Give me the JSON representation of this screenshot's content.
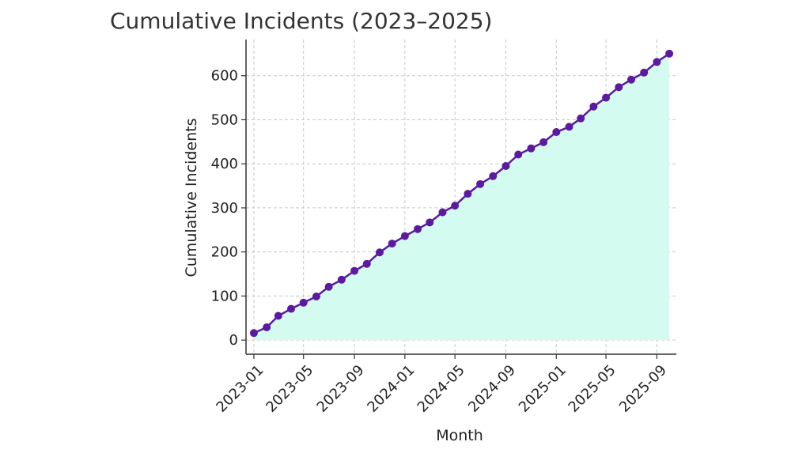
{
  "chart_data": {
    "type": "area",
    "title": "Cumulative Incidents (2023–2025)",
    "xlabel": "Month",
    "ylabel": "Cumulative Incidents",
    "x": [
      "2023-01",
      "2023-02",
      "2023-03",
      "2023-04",
      "2023-05",
      "2023-06",
      "2023-07",
      "2023-08",
      "2023-09",
      "2023-10",
      "2023-11",
      "2023-12",
      "2024-01",
      "2024-02",
      "2024-03",
      "2024-04",
      "2024-05",
      "2024-06",
      "2024-07",
      "2024-08",
      "2024-09",
      "2024-10",
      "2024-11",
      "2024-12",
      "2025-01",
      "2025-02",
      "2025-03",
      "2025-04",
      "2025-05",
      "2025-06",
      "2025-07",
      "2025-08",
      "2025-09",
      "2025-10"
    ],
    "series": [
      {
        "values": [
          16,
          29,
          55,
          71,
          85,
          99,
          121,
          137,
          157,
          173,
          199,
          219,
          236,
          252,
          267,
          290,
          305,
          332,
          354,
          372,
          395,
          421,
          435,
          449,
          472,
          484,
          503,
          530,
          550,
          574,
          591,
          607,
          631,
          650
        ]
      }
    ],
    "x_ticks": [
      "2023-01",
      "2023-05",
      "2023-09",
      "2024-01",
      "2024-05",
      "2024-09",
      "2025-01",
      "2025-05",
      "2025-09"
    ],
    "y_ticks": [
      0,
      100,
      200,
      300,
      400,
      500,
      600
    ],
    "ylim": [
      -32,
      682
    ],
    "xlim": [
      "2022-12-13",
      "2025-10-18"
    ],
    "grid": true,
    "colors": {
      "line": "#5b1aa0",
      "marker": "#5b1aa0",
      "fill": "#d4fbef",
      "grid": "#c8c8c8",
      "axis": "#333333"
    }
  }
}
